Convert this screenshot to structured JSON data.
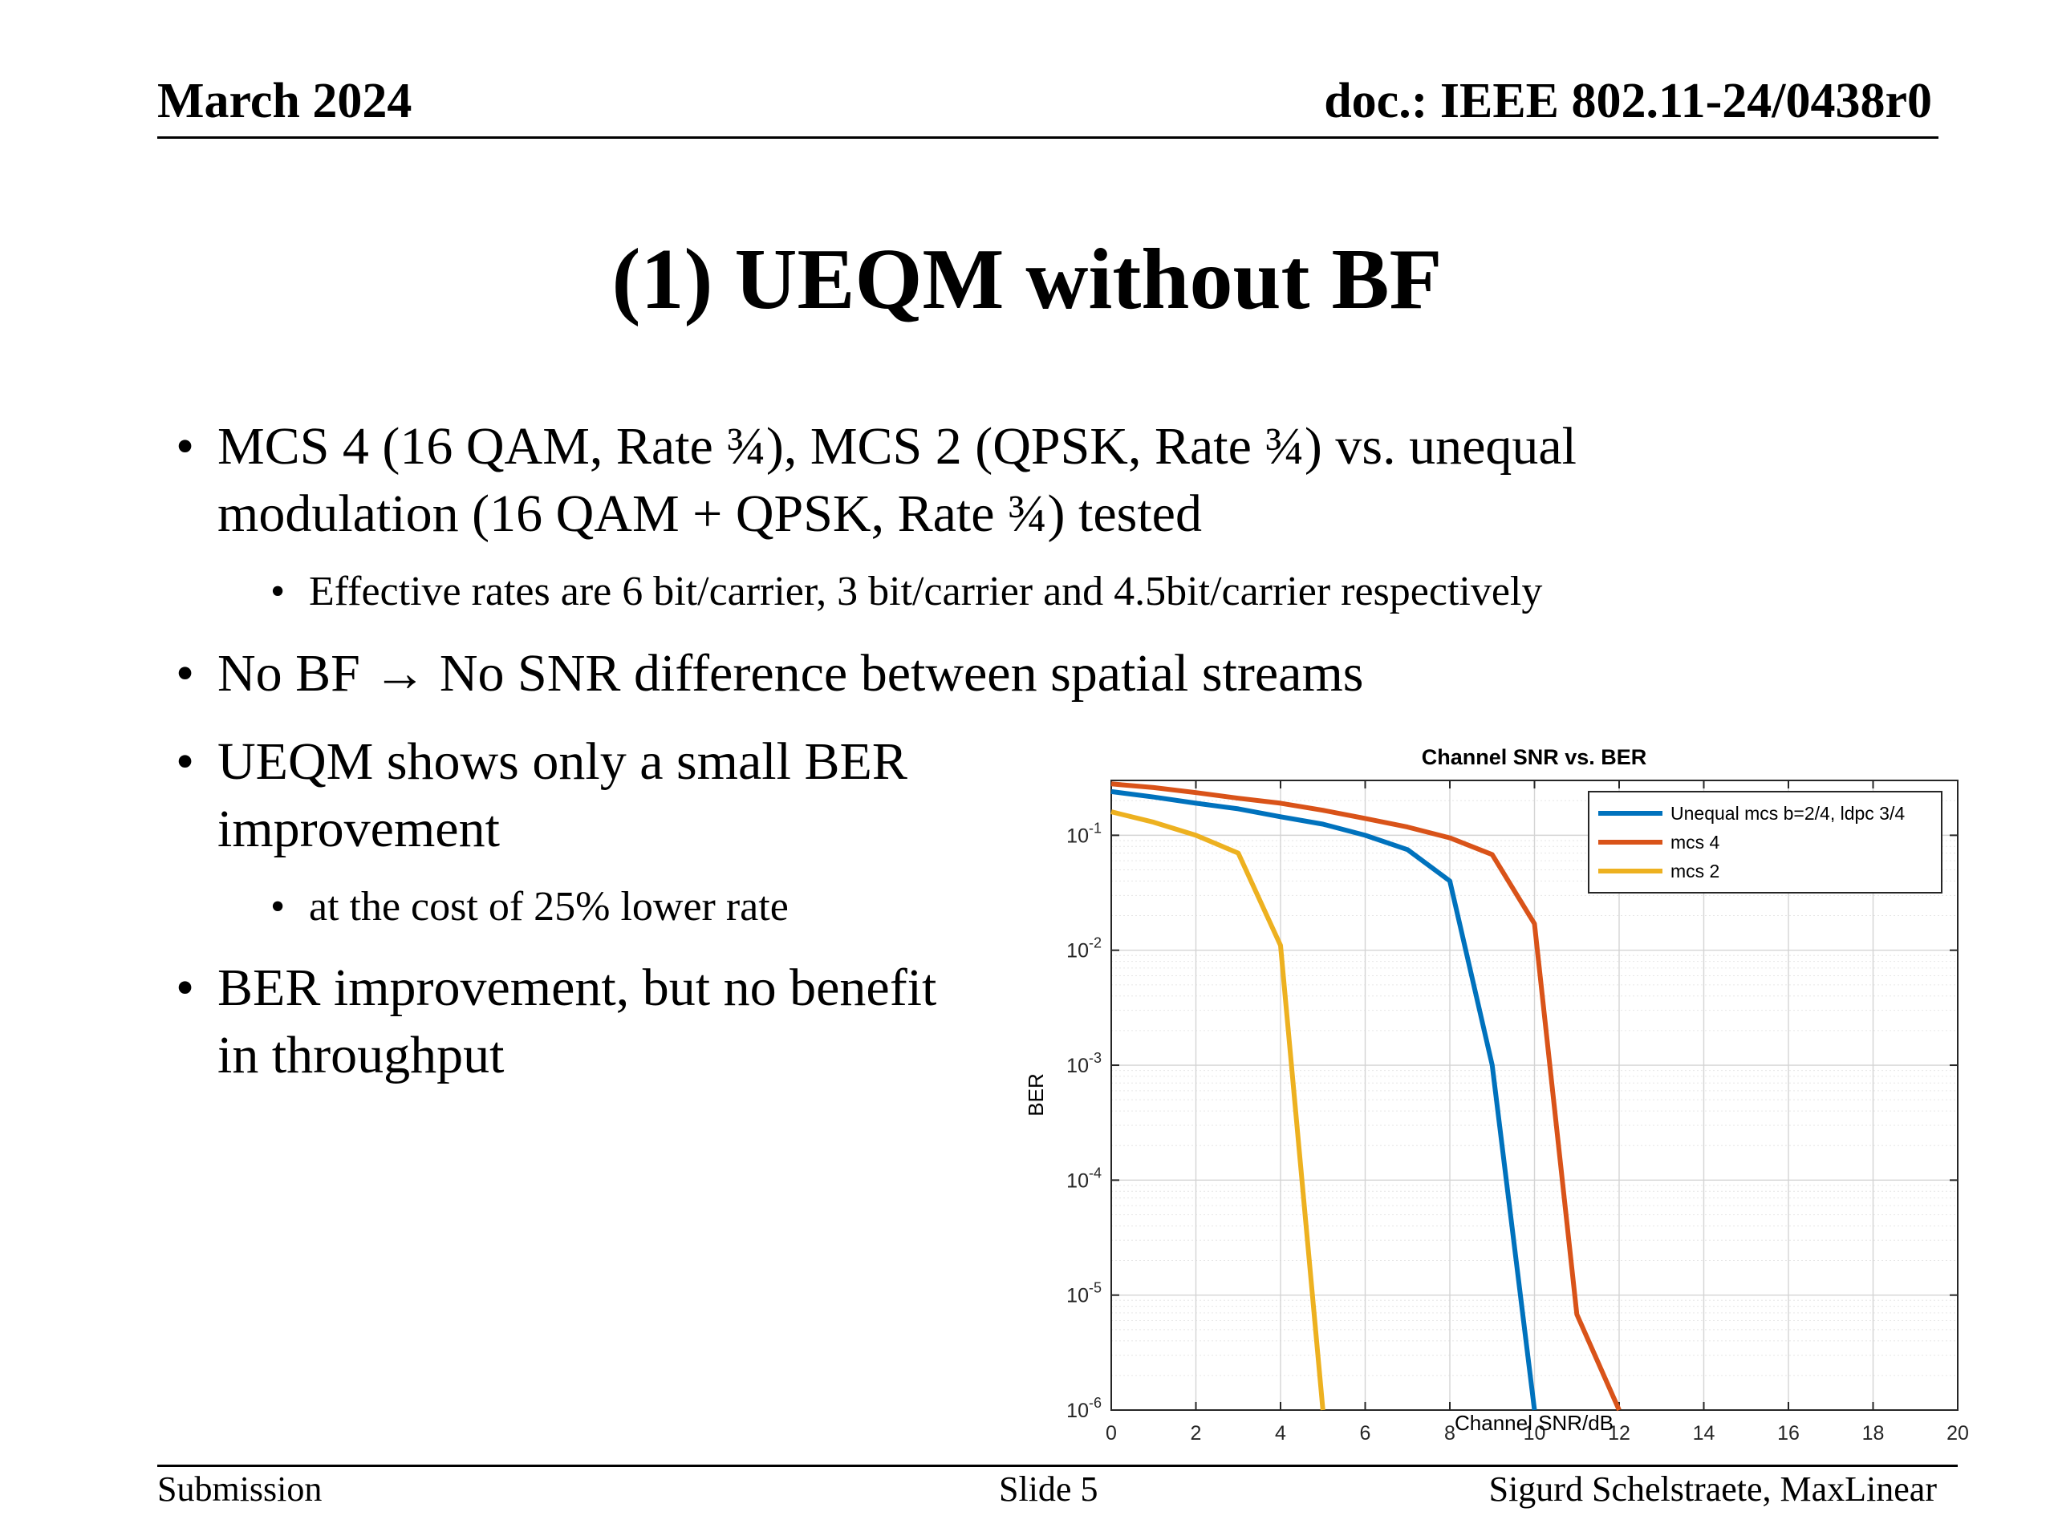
{
  "header": {
    "date": "March 2024",
    "doc": "doc.: IEEE 802.11-24/0438r0"
  },
  "slide": {
    "title": "(1) UEQM without BF",
    "bullets": [
      {
        "level": 1,
        "lines": [
          "MCS 4 (16 QAM, Rate ¾), MCS 2 (QPSK, Rate ¾) vs. unequal",
          "modulation (16 QAM + QPSK, Rate ¾) tested"
        ]
      },
      {
        "level": 2,
        "lines": [
          "Effective rates are 6 bit/carrier, 3 bit/carrier and 4.5bit/carrier respectively"
        ]
      },
      {
        "level": 1,
        "lines": [
          "No BF → No SNR difference between spatial streams"
        ]
      },
      {
        "level": 1,
        "lines": [
          "UEQM shows only a small BER",
          "improvement"
        ]
      },
      {
        "level": 2,
        "lines": [
          "at the cost of 25% lower rate"
        ]
      },
      {
        "level": 1,
        "lines": [
          "BER improvement, but no benefit",
          "in throughput"
        ]
      }
    ]
  },
  "footer": {
    "left": "Submission",
    "center": "Slide 5",
    "right": "Sigurd Schelstraete, MaxLinear"
  },
  "chart_data": {
    "type": "line",
    "title": "Channel SNR vs. BER",
    "xlabel": "Channel SNR/dB",
    "ylabel": "BER",
    "xlim": [
      0,
      20
    ],
    "ylim": [
      1e-06,
      0.3
    ],
    "yscale": "log",
    "xticks": [
      0,
      2,
      4,
      6,
      8,
      10,
      12,
      14,
      16,
      18,
      20
    ],
    "yticks": [
      {
        "value": 0.1,
        "base": "10",
        "exp": "-1"
      },
      {
        "value": 0.01,
        "base": "10",
        "exp": "-2"
      },
      {
        "value": 0.001,
        "base": "10",
        "exp": "-3"
      },
      {
        "value": 0.0001,
        "base": "10",
        "exp": "-4"
      },
      {
        "value": 1e-05,
        "base": "10",
        "exp": "-5"
      },
      {
        "value": 1e-06,
        "base": "10",
        "exp": "-6"
      }
    ],
    "grid": true,
    "legend_position": "top-right",
    "series": [
      {
        "name": "Unequal mcs b=2/4, ldpc 3/4",
        "color": "#0072BD",
        "x": [
          0,
          1,
          2,
          3,
          4,
          5,
          6,
          7,
          8,
          9,
          10
        ],
        "y": [
          0.24,
          0.215,
          0.19,
          0.17,
          0.145,
          0.125,
          0.1,
          0.075,
          0.04,
          0.001,
          1e-06
        ]
      },
      {
        "name": "mcs 4",
        "color": "#D95319",
        "x": [
          0,
          1,
          2,
          3,
          4,
          5,
          6,
          7,
          8,
          9,
          10,
          11,
          12
        ],
        "y": [
          0.28,
          0.26,
          0.235,
          0.21,
          0.19,
          0.165,
          0.14,
          0.118,
          0.095,
          0.068,
          0.017,
          6.8e-06,
          1e-06
        ]
      },
      {
        "name": "mcs 2",
        "color": "#EDB120",
        "x": [
          0,
          1,
          2,
          3,
          4,
          5
        ],
        "y": [
          0.16,
          0.13,
          0.1,
          0.07,
          0.011,
          1e-06
        ]
      }
    ]
  }
}
